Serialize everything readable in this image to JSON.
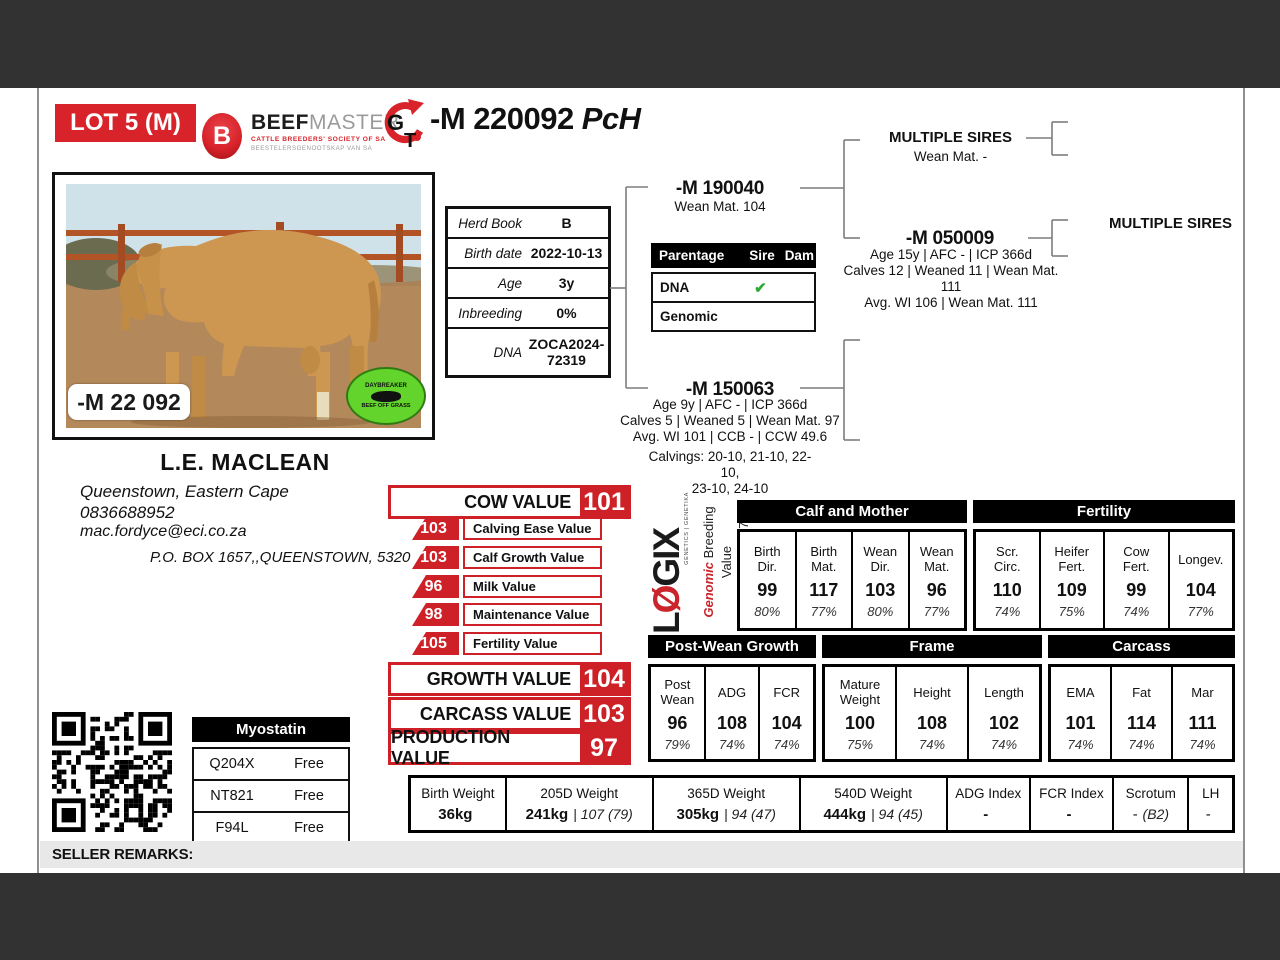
{
  "page": {
    "lot": "LOT 5 (M)",
    "animal_id": "-M 220092",
    "animal_suffix": "PcH",
    "seller_remarks": "SELLER REMARKS:"
  },
  "brand": {
    "b_letter": "B",
    "beef": "BEEF",
    "master": "MASTER",
    "sub_en": "CATTLE BREEDERS' SOCIETY OF SA",
    "sub_af": "BEESTELERSGENOOTSKAP VAN SA",
    "g_letter": "G",
    "t_letter": "T"
  },
  "photo": {
    "tag": "-M 22 092",
    "badge_top": "DAYBREAKER",
    "badge_bottom": "BEEF OFF GRASS"
  },
  "info": {
    "rows": [
      {
        "label": "Herd Book",
        "value": "B"
      },
      {
        "label": "Birth date",
        "value": "2022-10-13"
      },
      {
        "label": "Age",
        "value": "3y"
      },
      {
        "label": "Inbreeding",
        "value": "0%"
      },
      {
        "label": "DNA",
        "value": "ZOCA2024-72319"
      }
    ]
  },
  "parentage": {
    "title": "Parentage",
    "col_sire": "Sire",
    "col_dam": "Dam",
    "rows": [
      {
        "label": "DNA",
        "sire": "✔",
        "dam": ""
      },
      {
        "label": "Genomic",
        "sire": "",
        "dam": ""
      }
    ]
  },
  "pedigree": {
    "sire_id": "-M 190040",
    "sire_line": "Wean Mat. 104",
    "sire_sire_id": "MULTIPLE SIRES",
    "sire_sire_line": "Wean Mat. -",
    "sire_dam_id": "-M 050009",
    "sire_dam_lines": "Age 15y | AFC - | ICP 366d\nCalves 12 | Weaned 11 | Wean Mat. 111\nAvg. WI 106 | Wean Mat. 111",
    "gen3_label": "MULTIPLE SIRES",
    "dam_id": "-M 150063",
    "dam_lines": "Age 9y | AFC - | ICP 366d\nCalves 5 | Weaned 5 | Wean Mat. 97\nAvg. WI 101 | CCB - | CCW 49.6",
    "dam_calvings": "Calvings: 20-10, 21-10, 22-10,\n23-10, 24-10"
  },
  "owner": {
    "name": "L.E. MACLEAN",
    "location": "Queenstown, Eastern Cape",
    "phone": "0836688952",
    "email": "mac.fordyce@eci.co.za",
    "address": "P.O. BOX 1657,,QUEENSTOWN, 5320"
  },
  "values": {
    "cow_label": "COW VALUE",
    "cow_value": "101",
    "subs": [
      {
        "label": "Calving Ease Value",
        "value": "103"
      },
      {
        "label": "Calf Growth Value",
        "value": "103"
      },
      {
        "label": "Milk Value",
        "value": "96"
      },
      {
        "label": "Maintenance Value",
        "value": "98"
      },
      {
        "label": "Fertility Value",
        "value": "105"
      }
    ],
    "growth_label": "GROWTH VALUE",
    "growth_value": "104",
    "carcass_label": "CARCASS VALUE",
    "carcass_value": "103",
    "production_label": "PRODUCTION VALUE",
    "production_value": "97"
  },
  "logix": {
    "word_l": "L",
    "word_o": "Ø",
    "word_rest": "GIX",
    "word_sub": "GENETICS | GENETIKA",
    "line1_red": "Genomic",
    "line1_rest": " Breeding Value",
    "line2": "Analysis 2025-07-22"
  },
  "genomic_tables": [
    {
      "title": "Calf and Mother",
      "cols": [
        {
          "label": "Birth\nDir.",
          "value": "99",
          "acc": "80%"
        },
        {
          "label": "Birth\nMat.",
          "value": "117",
          "acc": "77%"
        },
        {
          "label": "Wean\nDir.",
          "value": "103",
          "acc": "80%"
        },
        {
          "label": "Wean\nMat.",
          "value": "96",
          "acc": "77%"
        }
      ]
    },
    {
      "title": "Fertility",
      "cols": [
        {
          "label": "Scr.\nCirc.",
          "value": "110",
          "acc": "74%"
        },
        {
          "label": "Heifer\nFert.",
          "value": "109",
          "acc": "75%"
        },
        {
          "label": "Cow\nFert.",
          "value": "99",
          "acc": "74%"
        },
        {
          "label": "Longev.",
          "value": "104",
          "acc": "77%"
        }
      ]
    },
    {
      "title": "Post-Wean Growth",
      "cols": [
        {
          "label": "Post\nWean",
          "value": "96",
          "acc": "79%"
        },
        {
          "label": "ADG",
          "value": "108",
          "acc": "74%"
        },
        {
          "label": "FCR",
          "value": "104",
          "acc": "74%"
        }
      ]
    },
    {
      "title": "Frame",
      "cols": [
        {
          "label": "Mature\nWeight",
          "value": "100",
          "acc": "75%"
        },
        {
          "label": "Height",
          "value": "108",
          "acc": "74%"
        },
        {
          "label": "Length",
          "value": "102",
          "acc": "74%"
        }
      ]
    },
    {
      "title": "Carcass",
      "cols": [
        {
          "label": "EMA",
          "value": "101",
          "acc": "74%"
        },
        {
          "label": "Fat",
          "value": "114",
          "acc": "74%"
        },
        {
          "label": "Mar",
          "value": "111",
          "acc": "74%"
        }
      ]
    }
  ],
  "weights": {
    "cols": [
      {
        "label": "Birth Weight",
        "main": "36kg",
        "extra": ""
      },
      {
        "label": "205D Weight",
        "main": "241kg",
        "extra": "| 107 (79)"
      },
      {
        "label": "365D Weight",
        "main": "305kg",
        "extra": "| 94 (47)"
      },
      {
        "label": "540D Weight",
        "main": "444kg",
        "extra": "| 94 (45)"
      },
      {
        "label": "ADG Index",
        "main": "-",
        "extra": ""
      },
      {
        "label": "FCR Index",
        "main": "-",
        "extra": ""
      },
      {
        "label": "Scrotum",
        "main": "-",
        "extra": "(B2)"
      },
      {
        "label": "LH",
        "main": "-",
        "extra": ""
      }
    ]
  },
  "myostatin": {
    "title": "Myostatin",
    "rows": [
      {
        "gene": "Q204X",
        "status": "Free"
      },
      {
        "gene": "NT821",
        "status": "Free"
      },
      {
        "gene": "F94L",
        "status": "Free"
      }
    ]
  }
}
